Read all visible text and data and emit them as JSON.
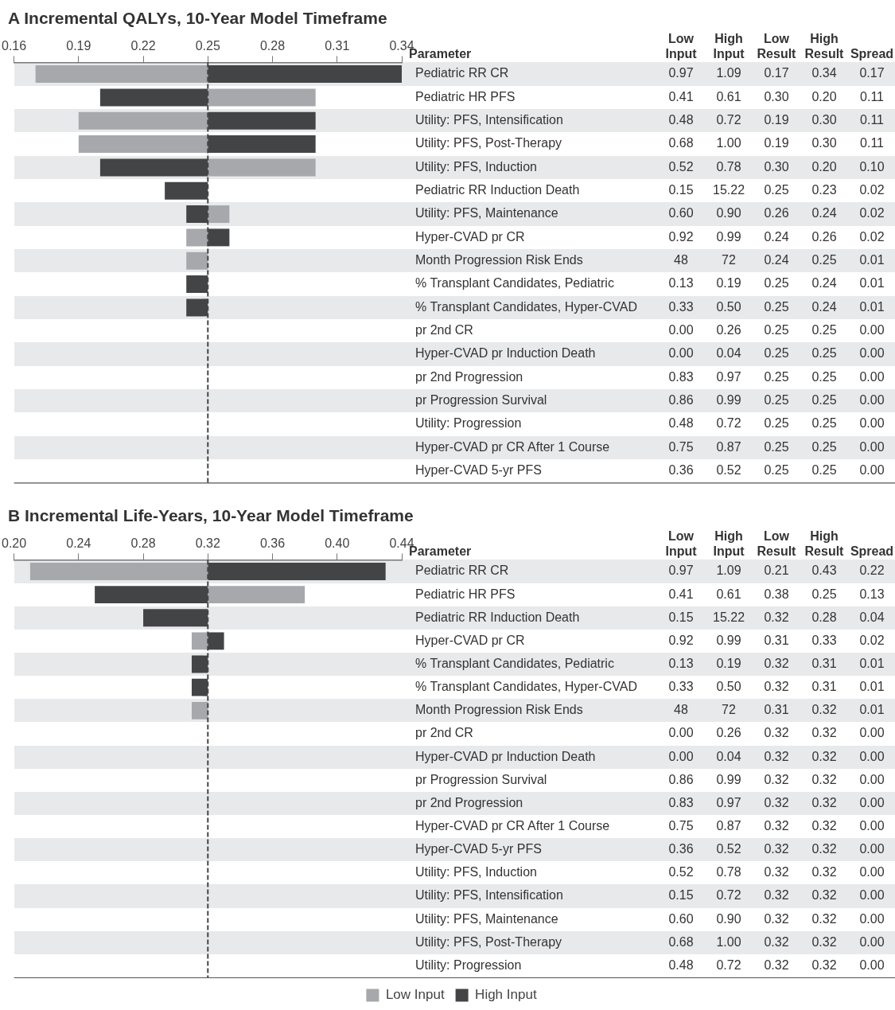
{
  "chart_data": [
    {
      "type": "bar",
      "orientation": "horizontal",
      "title": "A Incremental QALYs, 10-Year Model Timeframe",
      "ylabel": "Parameter",
      "categories": [
        "Pediatric RR CR",
        "Pediatric HR PFS",
        "Utility: PFS, Intensification",
        "Utility: PFS, Post-Therapy",
        "Utility: PFS, Induction",
        "Pediatric RR Induction Death",
        "Utility: PFS, Maintenance",
        "Hyper-CVAD pr CR",
        "Month Progression Risk Ends",
        "% Transplant Candidates, Pediatric",
        "% Transplant Candidates, Hyper-CVAD",
        "pr 2nd CR",
        "Hyper-CVAD pr Induction Death",
        "pr 2nd Progression",
        "pr Progression Survival",
        "Utility: Progression",
        "Hyper-CVAD pr CR After 1 Course",
        "Hyper-CVAD 5-yr PFS"
      ],
      "series": [
        {
          "color": "#a7a8ab",
          "base": [
            0.25,
            0.25,
            0.25,
            0.25,
            0.25,
            null,
            0.25,
            0.25,
            0.25,
            null,
            null,
            null,
            null,
            null,
            null,
            null,
            null,
            null
          ],
          "values": [
            -0.08,
            0.05,
            -0.06,
            -0.06,
            0.05,
            null,
            0.01,
            -0.01,
            -0.01,
            null,
            null,
            null,
            null,
            null,
            null,
            null,
            null,
            null
          ]
        },
        {
          "color": "#434446",
          "base": [
            0.25,
            0.25,
            0.25,
            0.25,
            0.25,
            0.25,
            0.25,
            0.25,
            null,
            0.25,
            0.25,
            null,
            null,
            null,
            null,
            null,
            null,
            null
          ],
          "values": [
            0.09,
            -0.05,
            0.05,
            0.05,
            -0.05,
            -0.02,
            -0.01,
            0.01,
            null,
            -0.01,
            -0.01,
            null,
            null,
            null,
            null,
            null,
            null,
            null
          ]
        }
      ],
      "xlim": [
        0.16,
        0.34
      ],
      "xticks": [
        0.16,
        0.19,
        0.22,
        0.25,
        0.28,
        0.31,
        0.34
      ],
      "ref_lines": [
        {
          "axis": "x",
          "value": 0.25,
          "color": "#444444",
          "line_style": "dashed"
        }
      ],
      "grid": false,
      "legend": false
    },
    {
      "type": "other",
      "categories": [
        "Low Input",
        "High Input",
        "Low Result",
        "High Result",
        "Spread"
      ],
      "cell_labels": [
        [
          "0.97",
          "1.09",
          "0.17",
          "0.34",
          "0.17"
        ],
        [
          "0.41",
          "0.61",
          "0.30",
          "0.20",
          "0.11"
        ],
        [
          "0.48",
          "0.72",
          "0.19",
          "0.30",
          "0.11"
        ],
        [
          "0.68",
          "1.00",
          "0.19",
          "0.30",
          "0.11"
        ],
        [
          "0.52",
          "0.78",
          "0.30",
          "0.20",
          "0.10"
        ],
        [
          "0.15",
          "15.22",
          "0.25",
          "0.23",
          "0.02"
        ],
        [
          "0.60",
          "0.90",
          "0.26",
          "0.24",
          "0.02"
        ],
        [
          "0.92",
          "0.99",
          "0.24",
          "0.26",
          "0.02"
        ],
        [
          "48",
          "72",
          "0.24",
          "0.25",
          "0.01"
        ],
        [
          "0.13",
          "0.19",
          "0.25",
          "0.24",
          "0.01"
        ],
        [
          "0.33",
          "0.50",
          "0.25",
          "0.24",
          "0.01"
        ],
        [
          "0.00",
          "0.26",
          "0.25",
          "0.25",
          "0.00"
        ],
        [
          "0.00",
          "0.04",
          "0.25",
          "0.25",
          "0.00"
        ],
        [
          "0.83",
          "0.97",
          "0.25",
          "0.25",
          "0.00"
        ],
        [
          "0.86",
          "0.99",
          "0.25",
          "0.25",
          "0.00"
        ],
        [
          "0.48",
          "0.72",
          "0.25",
          "0.25",
          "0.00"
        ],
        [
          "0.75",
          "0.87",
          "0.25",
          "0.25",
          "0.00"
        ],
        [
          "0.36",
          "0.52",
          "0.25",
          "0.25",
          "0.00"
        ]
      ]
    },
    {
      "type": "bar",
      "orientation": "horizontal",
      "title": "B Incremental Life-Years, 10-Year Model Timeframe",
      "ylabel": "Parameter",
      "categories": [
        "Pediatric RR CR",
        "Pediatric HR PFS",
        "Pediatric RR Induction Death",
        "Hyper-CVAD pr CR",
        "% Transplant Candidates, Pediatric",
        "% Transplant Candidates, Hyper-CVAD",
        "Month Progression Risk Ends",
        "pr 2nd CR",
        "Hyper-CVAD pr Induction Death",
        "pr Progression Survival",
        "pr 2nd Progression",
        "Hyper-CVAD pr CR After 1 Course",
        "Hyper-CVAD 5-yr PFS",
        "Utility: PFS, Induction",
        "Utility: PFS, Intensification",
        "Utility: PFS, Maintenance",
        "Utility: PFS, Post-Therapy",
        "Utility: Progression"
      ],
      "series": [
        {
          "name": "Low Input",
          "color": "#a7a8ab",
          "base": [
            0.32,
            0.32,
            null,
            0.32,
            null,
            null,
            0.32,
            null,
            null,
            null,
            null,
            null,
            null,
            null,
            null,
            null,
            null,
            null
          ],
          "values": [
            -0.11,
            0.06,
            null,
            -0.01,
            null,
            null,
            -0.01,
            null,
            null,
            null,
            null,
            null,
            null,
            null,
            null,
            null,
            null,
            null
          ]
        },
        {
          "name": "High Input",
          "color": "#434446",
          "base": [
            0.32,
            0.32,
            0.32,
            0.32,
            0.32,
            0.32,
            null,
            null,
            null,
            null,
            null,
            null,
            null,
            null,
            null,
            null,
            null,
            null
          ],
          "values": [
            0.11,
            -0.07,
            -0.04,
            0.01,
            -0.01,
            -0.01,
            null,
            null,
            null,
            null,
            null,
            null,
            null,
            null,
            null,
            null,
            null,
            null
          ]
        }
      ],
      "xlim": [
        0.2,
        0.44
      ],
      "xticks": [
        {
          "value": 0.2,
          "label": "0.20"
        },
        0.24,
        0.28,
        0.32,
        0.36,
        {
          "value": 0.4,
          "label": "0.40"
        },
        0.44
      ],
      "ref_lines": [
        {
          "axis": "x",
          "value": 0.32,
          "color": "#444444",
          "line_style": "dashed"
        }
      ],
      "grid": false,
      "legend": "bottom"
    },
    {
      "type": "other",
      "categories": [
        "Low Input",
        "High Input",
        "Low Result",
        "High Result",
        "Spread"
      ],
      "cell_labels": [
        [
          "0.97",
          "1.09",
          "0.21",
          "0.43",
          "0.22"
        ],
        [
          "0.41",
          "0.61",
          "0.38",
          "0.25",
          "0.13"
        ],
        [
          "0.15",
          "15.22",
          "0.32",
          "0.28",
          "0.04"
        ],
        [
          "0.92",
          "0.99",
          "0.31",
          "0.33",
          "0.02"
        ],
        [
          "0.13",
          "0.19",
          "0.32",
          "0.31",
          "0.01"
        ],
        [
          "0.33",
          "0.50",
          "0.32",
          "0.31",
          "0.01"
        ],
        [
          "48",
          "72",
          "0.31",
          "0.32",
          "0.01"
        ],
        [
          "0.00",
          "0.26",
          "0.32",
          "0.32",
          "0.00"
        ],
        [
          "0.00",
          "0.04",
          "0.32",
          "0.32",
          "0.00"
        ],
        [
          "0.86",
          "0.99",
          "0.32",
          "0.32",
          "0.00"
        ],
        [
          "0.83",
          "0.97",
          "0.32",
          "0.32",
          "0.00"
        ],
        [
          "0.75",
          "0.87",
          "0.32",
          "0.32",
          "0.00"
        ],
        [
          "0.36",
          "0.52",
          "0.32",
          "0.32",
          "0.00"
        ],
        [
          "0.52",
          "0.78",
          "0.32",
          "0.32",
          "0.00"
        ],
        [
          "0.15",
          "0.72",
          "0.32",
          "0.32",
          "0.00"
        ],
        [
          "0.60",
          "0.90",
          "0.32",
          "0.32",
          "0.00"
        ],
        [
          "0.68",
          "1.00",
          "0.32",
          "0.32",
          "0.00"
        ],
        [
          "0.48",
          "0.72",
          "0.32",
          "0.32",
          "0.00"
        ]
      ]
    }
  ]
}
